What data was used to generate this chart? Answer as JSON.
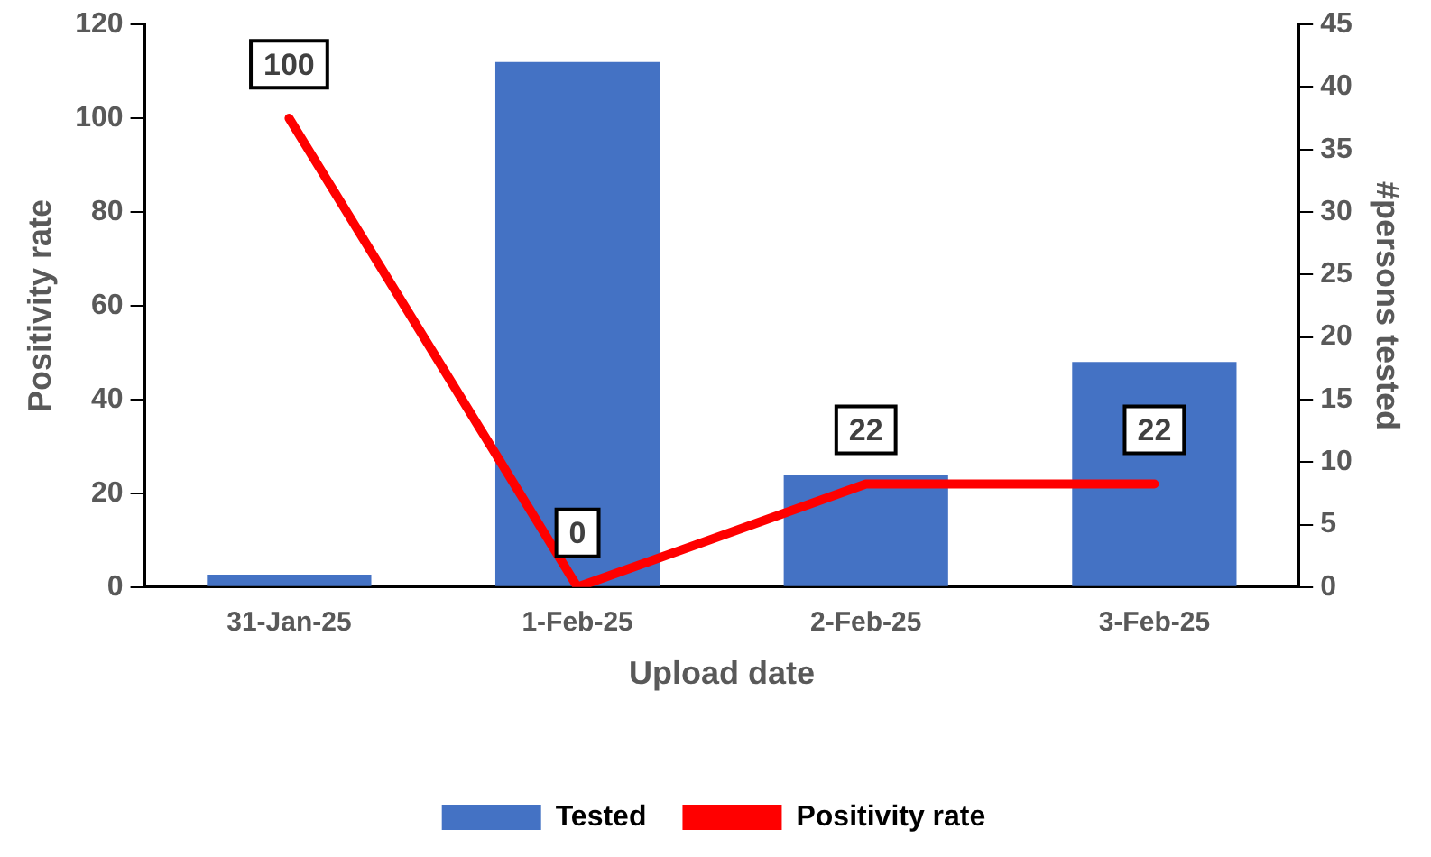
{
  "chart_data": {
    "type": "bar",
    "xlabel": "Upload date",
    "ylabel": "Positivity rate",
    "y2label": "#persons tested",
    "categories": [
      "31-Jan-25",
      "1-Feb-25",
      "2-Feb-25",
      "3-Feb-25"
    ],
    "series": [
      {
        "name": "Tested",
        "axis": "y2",
        "color": "#4472c4",
        "values": [
          1,
          42,
          9,
          18
        ]
      },
      {
        "name": "Positivity rate",
        "type": "line",
        "axis": "y",
        "color": "#ff0000",
        "values": [
          100,
          0,
          22,
          22
        ],
        "value_labels": [
          "100",
          "0",
          "22",
          "22"
        ]
      }
    ],
    "ylim": [
      0,
      120
    ],
    "yticks": [
      0,
      20,
      40,
      60,
      80,
      100,
      120
    ],
    "y2lim": [
      0,
      45
    ],
    "y2ticks": [
      0,
      5,
      10,
      15,
      20,
      25,
      30,
      35,
      40,
      45
    ],
    "grid": false,
    "legend": "bottom",
    "marker": "none",
    "line_style": "solid"
  }
}
